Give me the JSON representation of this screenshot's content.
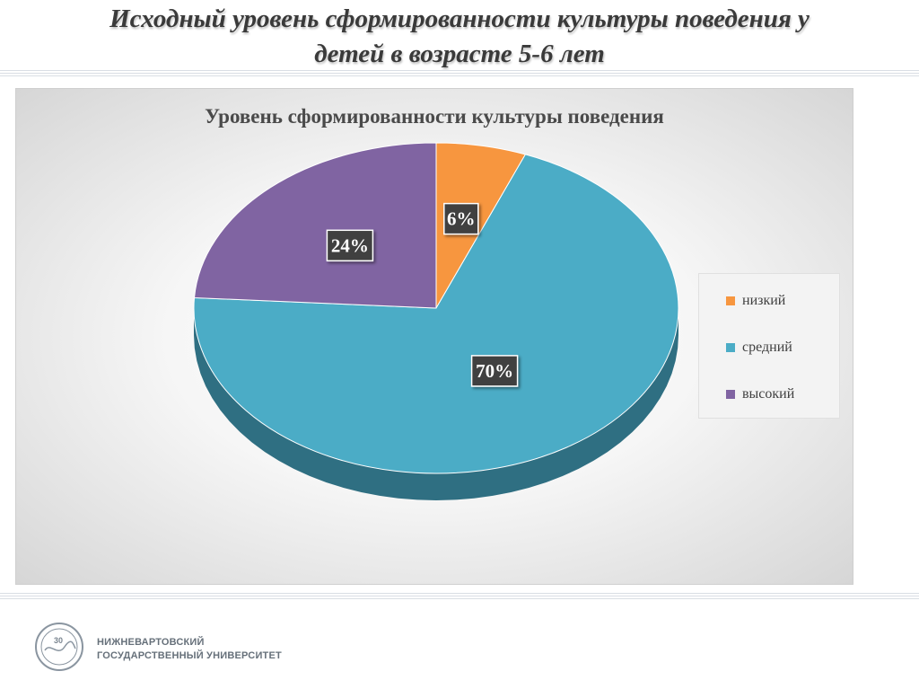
{
  "slide": {
    "title_line1": "Исходный уровень сформированности культуры поведения у",
    "title_line2": "детей в возрасте 5-6 лет"
  },
  "chart_data": {
    "type": "pie",
    "title": "Уровень сформированности культуры поведения",
    "categories": [
      "низкий",
      "средний",
      "высокий"
    ],
    "values": [
      6,
      70,
      24
    ],
    "data_labels": [
      "6%",
      "70%",
      "24%"
    ],
    "colors": [
      "#f7963f",
      "#4bacc6",
      "#8064a2"
    ],
    "side_colors": [
      "#a8621f",
      "#2f6f82",
      "#4f3b6b"
    ],
    "three_d": true,
    "legend_position": "right"
  },
  "footer": {
    "org_line1": "НИЖНЕВАРТОВСКИЙ",
    "org_line2": "ГОСУДАРСТВЕННЫЙ УНИВЕРСИТЕТ",
    "logo_text": "30"
  }
}
